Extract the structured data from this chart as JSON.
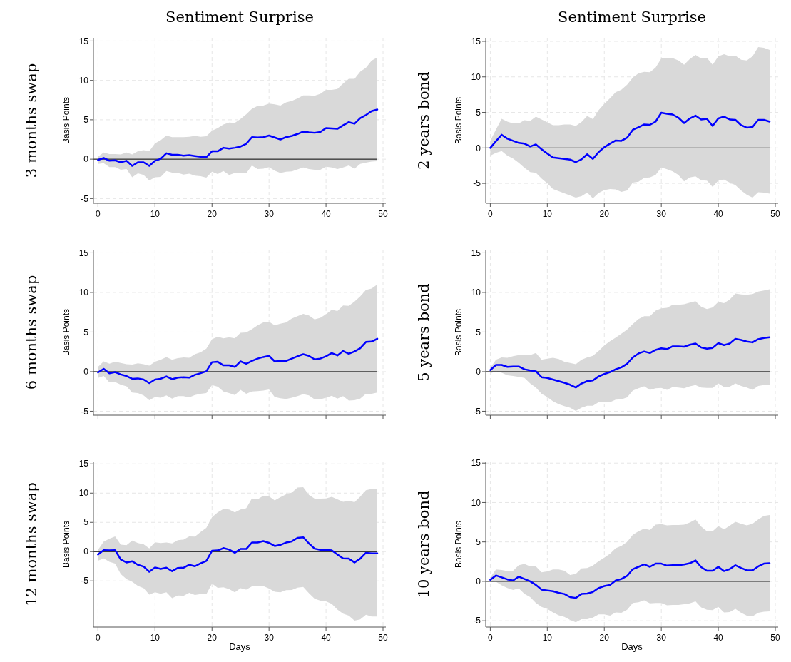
{
  "chart_data": [
    {
      "type": "line",
      "title": "Sentiment Surprise",
      "ylabel": "Basis Points",
      "annotations": [
        "3 months swap"
      ],
      "x": [
        0,
        1,
        2,
        3,
        4,
        5,
        6,
        7,
        8,
        9,
        10,
        11,
        12,
        13,
        14,
        15,
        16,
        17,
        18,
        19,
        20,
        21,
        22,
        23,
        24,
        25,
        26,
        27,
        28,
        29,
        30,
        31,
        32,
        33,
        34,
        35,
        36,
        37,
        38,
        39,
        40,
        41,
        42,
        43,
        44,
        45,
        46,
        47,
        48,
        49
      ],
      "xlim": [
        -0.8,
        50.5
      ],
      "xticks": [
        0,
        10,
        20,
        30,
        40,
        50
      ],
      "ylim": [
        -5.6,
        15.4
      ],
      "yticks": [
        -5,
        0,
        5,
        10,
        15
      ],
      "grid": true,
      "ref_lines": [
        {
          "axis": "y",
          "value": 0,
          "color": "#000000"
        }
      ],
      "series": [
        {
          "color": "#0000ff",
          "values": [
            -0.1,
            0.15,
            -0.2,
            -0.15,
            -0.4,
            -0.2,
            -0.85,
            -0.4,
            -0.4,
            -0.85,
            -0.2,
            0.05,
            0.75,
            0.55,
            0.55,
            0.45,
            0.5,
            0.4,
            0.3,
            0.25,
            1.0,
            1.0,
            1.45,
            1.35,
            1.45,
            1.6,
            1.95,
            2.8,
            2.75,
            2.8,
            3.0,
            2.75,
            2.5,
            2.8,
            2.95,
            3.2,
            3.5,
            3.4,
            3.35,
            3.45,
            3.95,
            3.9,
            3.85,
            4.3,
            4.7,
            4.5,
            5.2,
            5.6,
            6.1,
            6.3
          ],
          "upper": [
            0.3,
            0.85,
            0.65,
            0.65,
            0.6,
            0.85,
            0.6,
            1.0,
            1.15,
            1.0,
            2.0,
            2.4,
            3.0,
            2.8,
            2.8,
            2.8,
            2.85,
            2.95,
            2.85,
            2.9,
            3.6,
            3.95,
            4.4,
            4.65,
            4.6,
            5.1,
            5.7,
            6.4,
            6.75,
            6.8,
            7.05,
            6.95,
            6.8,
            7.2,
            7.4,
            7.7,
            8.1,
            8.1,
            8.05,
            8.3,
            8.8,
            8.8,
            8.9,
            9.6,
            10.2,
            10.2,
            11.1,
            11.6,
            12.5,
            12.9
          ],
          "lower": [
            -0.6,
            -0.5,
            -1.0,
            -1.0,
            -1.35,
            -1.25,
            -2.3,
            -1.8,
            -2.0,
            -2.7,
            -2.3,
            -2.25,
            -1.5,
            -1.7,
            -1.75,
            -1.95,
            -1.85,
            -2.1,
            -2.15,
            -2.35,
            -1.6,
            -1.9,
            -1.5,
            -2.0,
            -1.75,
            -1.8,
            -1.8,
            -0.8,
            -1.25,
            -1.2,
            -1.0,
            -1.45,
            -1.75,
            -1.6,
            -1.55,
            -1.3,
            -1.05,
            -1.25,
            -1.35,
            -1.35,
            -0.95,
            -1.05,
            -1.25,
            -1.05,
            -0.8,
            -1.2,
            -0.6,
            -0.45,
            -0.3,
            -0.25
          ]
        }
      ]
    },
    {
      "type": "line",
      "title": "Sentiment Surprise",
      "ylabel": "Basis Points",
      "annotations": [
        "2 years bond"
      ],
      "x": [
        0,
        1,
        2,
        3,
        4,
        5,
        6,
        7,
        8,
        9,
        10,
        11,
        12,
        13,
        14,
        15,
        16,
        17,
        18,
        19,
        20,
        21,
        22,
        23,
        24,
        25,
        26,
        27,
        28,
        29,
        30,
        31,
        32,
        33,
        34,
        35,
        36,
        37,
        38,
        39,
        40,
        41,
        42,
        43,
        44,
        45,
        46,
        47,
        48,
        49
      ],
      "xlim": [
        -0.8,
        50.5
      ],
      "xticks": [
        0,
        10,
        20,
        30,
        40,
        50
      ],
      "ylim": [
        -7.8,
        15.5
      ],
      "yticks": [
        -5,
        0,
        5,
        10,
        15
      ],
      "grid": true,
      "ref_lines": [
        {
          "axis": "y",
          "value": 0,
          "color": "#000000"
        }
      ],
      "series": [
        {
          "color": "#0000ff",
          "values": [
            0,
            0.95,
            1.85,
            1.3,
            1.0,
            0.7,
            0.6,
            0.2,
            0.5,
            -0.2,
            -0.8,
            -1.35,
            -1.45,
            -1.55,
            -1.65,
            -2.0,
            -1.6,
            -0.9,
            -1.55,
            -0.6,
            0.1,
            0.6,
            1.05,
            1.0,
            1.45,
            2.55,
            2.9,
            3.3,
            3.25,
            3.7,
            4.95,
            4.8,
            4.7,
            4.25,
            3.5,
            4.15,
            4.55,
            4.0,
            4.1,
            3.1,
            4.15,
            4.4,
            4.0,
            3.95,
            3.2,
            2.85,
            2.95,
            3.95,
            3.95,
            3.7
          ],
          "upper": [
            1.0,
            2.6,
            4.1,
            3.7,
            3.45,
            3.45,
            3.9,
            3.8,
            4.4,
            4.0,
            3.6,
            3.2,
            3.2,
            3.3,
            3.3,
            3.1,
            3.65,
            4.5,
            4.05,
            5.3,
            6.2,
            7.0,
            7.85,
            8.2,
            8.9,
            9.9,
            10.5,
            10.7,
            10.65,
            11.3,
            12.6,
            12.6,
            12.65,
            12.3,
            11.7,
            12.5,
            13.1,
            12.6,
            12.7,
            11.7,
            12.9,
            13.2,
            12.9,
            13.0,
            12.4,
            12.3,
            12.9,
            14.2,
            14.1,
            13.8
          ],
          "lower": [
            -1.1,
            -0.7,
            -0.45,
            -1.1,
            -1.5,
            -2.1,
            -2.8,
            -3.4,
            -3.5,
            -4.3,
            -5.0,
            -5.8,
            -6.1,
            -6.4,
            -6.7,
            -7.0,
            -6.8,
            -6.3,
            -7.1,
            -6.35,
            -5.95,
            -5.8,
            -5.85,
            -6.2,
            -6.0,
            -4.9,
            -4.75,
            -4.2,
            -4.15,
            -3.8,
            -2.75,
            -3.0,
            -3.3,
            -3.8,
            -4.7,
            -4.15,
            -4.0,
            -4.55,
            -4.6,
            -5.5,
            -4.6,
            -4.45,
            -4.9,
            -5.25,
            -6.0,
            -6.6,
            -7.0,
            -6.25,
            -6.3,
            -6.45
          ]
        }
      ]
    },
    {
      "type": "line",
      "ylabel": "Basis Points",
      "annotations": [
        "6 months swap"
      ],
      "tick_labels": "y",
      "x": [
        0,
        1,
        2,
        3,
        4,
        5,
        6,
        7,
        8,
        9,
        10,
        11,
        12,
        13,
        14,
        15,
        16,
        17,
        18,
        19,
        20,
        21,
        22,
        23,
        24,
        25,
        26,
        27,
        28,
        29,
        30,
        31,
        32,
        33,
        34,
        35,
        36,
        37,
        38,
        39,
        40,
        41,
        42,
        43,
        44,
        45,
        46,
        47,
        48,
        49
      ],
      "xlim": [
        -0.8,
        50.5
      ],
      "xticks": [
        0,
        10,
        20,
        30,
        40,
        50
      ],
      "ylim": [
        -5.5,
        15.4
      ],
      "yticks": [
        -5,
        0,
        5,
        10,
        15
      ],
      "grid": true,
      "ref_lines": [
        {
          "axis": "y",
          "value": 0,
          "color": "#000000"
        }
      ],
      "series": [
        {
          "color": "#0000ff",
          "values": [
            -0.1,
            0.35,
            -0.2,
            -0.05,
            -0.35,
            -0.55,
            -0.9,
            -0.85,
            -1.0,
            -1.45,
            -1.0,
            -0.9,
            -0.6,
            -0.95,
            -0.75,
            -0.7,
            -0.75,
            -0.4,
            -0.2,
            0.05,
            1.2,
            1.25,
            0.8,
            0.8,
            0.6,
            1.3,
            1.0,
            1.35,
            1.65,
            1.85,
            2.0,
            1.3,
            1.35,
            1.35,
            1.65,
            1.95,
            2.2,
            2.0,
            1.55,
            1.65,
            1.95,
            2.35,
            2.05,
            2.6,
            2.25,
            2.55,
            2.95,
            3.75,
            3.8,
            4.15
          ],
          "upper": [
            0.6,
            1.3,
            1.0,
            1.25,
            1.1,
            0.95,
            0.9,
            1.05,
            0.95,
            0.75,
            1.25,
            1.5,
            1.85,
            1.5,
            1.7,
            1.8,
            1.75,
            2.2,
            2.45,
            2.9,
            4.1,
            4.4,
            4.2,
            4.35,
            4.2,
            4.9,
            4.95,
            5.35,
            5.85,
            6.2,
            6.3,
            5.85,
            6.05,
            6.2,
            6.7,
            7.0,
            7.3,
            7.1,
            6.6,
            6.8,
            7.25,
            7.8,
            7.65,
            8.35,
            8.3,
            8.85,
            9.5,
            10.3,
            10.5,
            11.0
          ],
          "lower": [
            -0.8,
            -0.55,
            -1.35,
            -1.3,
            -1.65,
            -1.85,
            -2.65,
            -2.7,
            -3.0,
            -3.6,
            -3.2,
            -3.3,
            -3.0,
            -3.4,
            -3.1,
            -3.1,
            -3.25,
            -2.95,
            -2.8,
            -2.7,
            -1.7,
            -1.9,
            -2.5,
            -2.7,
            -2.95,
            -2.3,
            -2.8,
            -2.5,
            -2.45,
            -2.4,
            -2.25,
            -3.2,
            -3.35,
            -3.45,
            -3.3,
            -3.1,
            -2.85,
            -3.0,
            -3.5,
            -3.5,
            -3.3,
            -3.05,
            -3.4,
            -3.1,
            -3.65,
            -3.6,
            -3.4,
            -2.8,
            -2.8,
            -2.65
          ]
        }
      ]
    },
    {
      "type": "line",
      "ylabel": "Basis Points",
      "annotations": [
        "5 years bond"
      ],
      "tick_labels": "y",
      "x": [
        0,
        1,
        2,
        3,
        4,
        5,
        6,
        7,
        8,
        9,
        10,
        11,
        12,
        13,
        14,
        15,
        16,
        17,
        18,
        19,
        20,
        21,
        22,
        23,
        24,
        25,
        26,
        27,
        28,
        29,
        30,
        31,
        32,
        33,
        34,
        35,
        36,
        37,
        38,
        39,
        40,
        41,
        42,
        43,
        44,
        45,
        46,
        47,
        48,
        49
      ],
      "xlim": [
        -0.8,
        50.5
      ],
      "xticks": [
        0,
        10,
        20,
        30,
        40,
        50
      ],
      "ylim": [
        -5.5,
        15.4
      ],
      "yticks": [
        -5,
        0,
        5,
        10,
        15
      ],
      "grid": true,
      "ref_lines": [
        {
          "axis": "y",
          "value": 0,
          "color": "#000000"
        }
      ],
      "series": [
        {
          "color": "#0000ff",
          "values": [
            0.2,
            0.85,
            0.85,
            0.6,
            0.65,
            0.65,
            0.3,
            0.15,
            0.05,
            -0.7,
            -0.8,
            -1.0,
            -1.2,
            -1.4,
            -1.65,
            -2.0,
            -1.5,
            -1.2,
            -1.1,
            -0.6,
            -0.3,
            -0.05,
            0.3,
            0.55,
            1.0,
            1.8,
            2.3,
            2.55,
            2.35,
            2.75,
            2.95,
            2.85,
            3.2,
            3.2,
            3.15,
            3.4,
            3.55,
            3.05,
            2.9,
            3.0,
            3.6,
            3.35,
            3.55,
            4.15,
            4.0,
            3.8,
            3.7,
            4.1,
            4.25,
            4.35
          ],
          "upper": [
            0.5,
            1.5,
            1.8,
            1.75,
            1.95,
            2.1,
            2.1,
            2.1,
            2.35,
            1.5,
            1.65,
            1.75,
            1.6,
            1.25,
            1.1,
            0.95,
            1.5,
            1.8,
            2.0,
            2.6,
            3.3,
            3.85,
            4.3,
            4.8,
            5.3,
            6.0,
            6.65,
            7.0,
            7.0,
            7.7,
            8.0,
            8.05,
            8.45,
            8.45,
            8.5,
            8.7,
            8.9,
            8.2,
            7.9,
            8.1,
            8.8,
            8.65,
            9.1,
            9.85,
            9.75,
            9.7,
            9.8,
            10.1,
            10.25,
            10.4
          ],
          "lower": [
            -0.2,
            0.05,
            -0.15,
            -0.45,
            -0.55,
            -0.65,
            -0.8,
            -1.5,
            -2.0,
            -2.8,
            -3.2,
            -3.75,
            -4.1,
            -4.35,
            -4.55,
            -4.95,
            -4.55,
            -4.3,
            -4.3,
            -3.85,
            -3.85,
            -3.85,
            -3.55,
            -3.5,
            -3.25,
            -2.4,
            -2.1,
            -1.85,
            -2.3,
            -2.1,
            -2.05,
            -2.3,
            -1.95,
            -2.0,
            -2.1,
            -1.85,
            -1.7,
            -2.0,
            -2.05,
            -2.05,
            -1.5,
            -1.95,
            -1.9,
            -1.5,
            -1.8,
            -2.0,
            -2.3,
            -1.8,
            -1.7,
            -1.7
          ]
        }
      ]
    },
    {
      "type": "line",
      "ylabel": "Basis Points",
      "xlabel": "Days",
      "annotations": [
        "12 months swap"
      ],
      "x": [
        0,
        1,
        2,
        3,
        4,
        5,
        6,
        7,
        8,
        9,
        10,
        11,
        12,
        13,
        14,
        15,
        16,
        17,
        18,
        19,
        20,
        21,
        22,
        23,
        24,
        25,
        26,
        27,
        28,
        29,
        30,
        31,
        32,
        33,
        34,
        35,
        36,
        37,
        38,
        39,
        40,
        41,
        42,
        43,
        44,
        45,
        46,
        47,
        48,
        49
      ],
      "xlim": [
        -0.8,
        50.5
      ],
      "xticks": [
        0,
        10,
        20,
        30,
        40,
        50
      ],
      "ylim": [
        -12.9,
        15.4
      ],
      "yticks": [
        -5,
        0,
        5,
        10,
        15
      ],
      "grid": true,
      "ref_lines": [
        {
          "axis": "y",
          "value": 0,
          "color": "#000000"
        }
      ],
      "series": [
        {
          "color": "#0000ff",
          "values": [
            -0.5,
            0.25,
            0.2,
            0.25,
            -1.35,
            -1.85,
            -1.65,
            -2.25,
            -2.55,
            -3.45,
            -2.7,
            -2.95,
            -2.75,
            -3.35,
            -2.8,
            -2.75,
            -2.25,
            -2.5,
            -2.0,
            -1.6,
            0.15,
            0.2,
            0.6,
            0.35,
            -0.2,
            0.45,
            0.45,
            1.55,
            1.55,
            1.8,
            1.5,
            0.95,
            1.15,
            1.55,
            1.75,
            2.35,
            2.45,
            1.4,
            0.5,
            0.3,
            0.3,
            0.2,
            -0.5,
            -1.15,
            -1.2,
            -1.85,
            -1.2,
            -0.2,
            -0.3,
            -0.3
          ],
          "upper": [
            0.3,
            1.7,
            2.2,
            2.6,
            1.2,
            1.1,
            1.9,
            1.45,
            1.25,
            0.55,
            1.6,
            1.45,
            1.55,
            1.4,
            1.95,
            2.05,
            2.6,
            2.55,
            3.35,
            4.05,
            5.9,
            6.7,
            7.3,
            7.2,
            6.7,
            7.2,
            7.4,
            9.1,
            8.95,
            9.55,
            9.45,
            8.75,
            9.3,
            9.8,
            10.1,
            10.95,
            11.0,
            9.7,
            9.05,
            9.05,
            9.1,
            9.35,
            8.95,
            8.5,
            8.7,
            8.45,
            9.4,
            10.5,
            10.7,
            10.7
          ],
          "lower": [
            -1.55,
            -1.15,
            -1.75,
            -2.05,
            -3.85,
            -4.7,
            -5.15,
            -5.85,
            -6.25,
            -7.35,
            -6.95,
            -7.2,
            -6.95,
            -7.95,
            -7.5,
            -7.55,
            -7.05,
            -7.4,
            -7.25,
            -7.3,
            -5.45,
            -6.2,
            -6.1,
            -6.4,
            -6.95,
            -6.25,
            -6.5,
            -5.95,
            -5.9,
            -5.9,
            -6.3,
            -6.85,
            -6.95,
            -6.6,
            -6.55,
            -6.15,
            -6.05,
            -7.1,
            -8.05,
            -8.4,
            -8.5,
            -8.95,
            -9.9,
            -10.6,
            -10.95,
            -11.8,
            -11.6,
            -10.8,
            -11.1,
            -11.1
          ]
        }
      ]
    },
    {
      "type": "line",
      "ylabel": "Basis Points",
      "xlabel": "Days",
      "annotations": [
        "10 years bond"
      ],
      "x": [
        0,
        1,
        2,
        3,
        4,
        5,
        6,
        7,
        8,
        9,
        10,
        11,
        12,
        13,
        14,
        15,
        16,
        17,
        18,
        19,
        20,
        21,
        22,
        23,
        24,
        25,
        26,
        27,
        28,
        29,
        30,
        31,
        32,
        33,
        34,
        35,
        36,
        37,
        38,
        39,
        40,
        41,
        42,
        43,
        44,
        45,
        46,
        47,
        48,
        49
      ],
      "xlim": [
        -0.8,
        50.5
      ],
      "xticks": [
        0,
        10,
        20,
        30,
        40,
        50
      ],
      "ylim": [
        -5.8,
        15.2
      ],
      "yticks": [
        -5,
        0,
        5,
        10,
        15
      ],
      "grid": true,
      "ref_lines": [
        {
          "axis": "y",
          "value": 0,
          "color": "#000000"
        }
      ],
      "series": [
        {
          "color": "#0000ff",
          "values": [
            0.2,
            0.75,
            0.5,
            0.25,
            0.1,
            0.6,
            0.3,
            0.0,
            -0.45,
            -1.05,
            -1.15,
            -1.25,
            -1.45,
            -1.6,
            -2.0,
            -2.1,
            -1.6,
            -1.55,
            -1.35,
            -0.85,
            -0.6,
            -0.45,
            0.1,
            0.3,
            0.7,
            1.55,
            1.85,
            2.15,
            1.85,
            2.25,
            2.25,
            2.0,
            2.05,
            2.05,
            2.15,
            2.3,
            2.65,
            1.8,
            1.35,
            1.35,
            1.85,
            1.3,
            1.55,
            2.05,
            1.7,
            1.4,
            1.4,
            1.9,
            2.25,
            2.3
          ],
          "upper": [
            0.5,
            1.5,
            1.45,
            1.3,
            1.35,
            2.05,
            2.2,
            1.9,
            1.9,
            1.15,
            1.25,
            1.5,
            1.5,
            1.35,
            0.8,
            0.95,
            1.65,
            1.7,
            2.0,
            2.55,
            3.0,
            3.5,
            4.2,
            4.5,
            5.0,
            5.9,
            6.35,
            6.7,
            6.5,
            7.2,
            7.25,
            7.1,
            7.15,
            7.15,
            7.2,
            7.45,
            7.85,
            6.95,
            6.35,
            6.35,
            7.0,
            6.6,
            7.05,
            7.55,
            7.3,
            7.1,
            7.3,
            7.85,
            8.3,
            8.4
          ],
          "lower": [
            -0.1,
            -0.05,
            -0.5,
            -0.85,
            -1.1,
            -0.9,
            -1.6,
            -2.0,
            -2.75,
            -3.25,
            -3.5,
            -3.95,
            -4.3,
            -4.5,
            -4.9,
            -5.2,
            -4.8,
            -4.8,
            -4.6,
            -4.2,
            -4.2,
            -4.35,
            -3.95,
            -4.0,
            -3.6,
            -2.75,
            -2.65,
            -2.4,
            -2.8,
            -2.75,
            -2.75,
            -3.05,
            -3.0,
            -3.0,
            -2.9,
            -2.8,
            -2.55,
            -3.3,
            -3.6,
            -3.65,
            -3.25,
            -3.95,
            -3.9,
            -3.5,
            -4.0,
            -4.35,
            -4.45,
            -4.0,
            -3.85,
            -3.8
          ]
        }
      ]
    }
  ]
}
